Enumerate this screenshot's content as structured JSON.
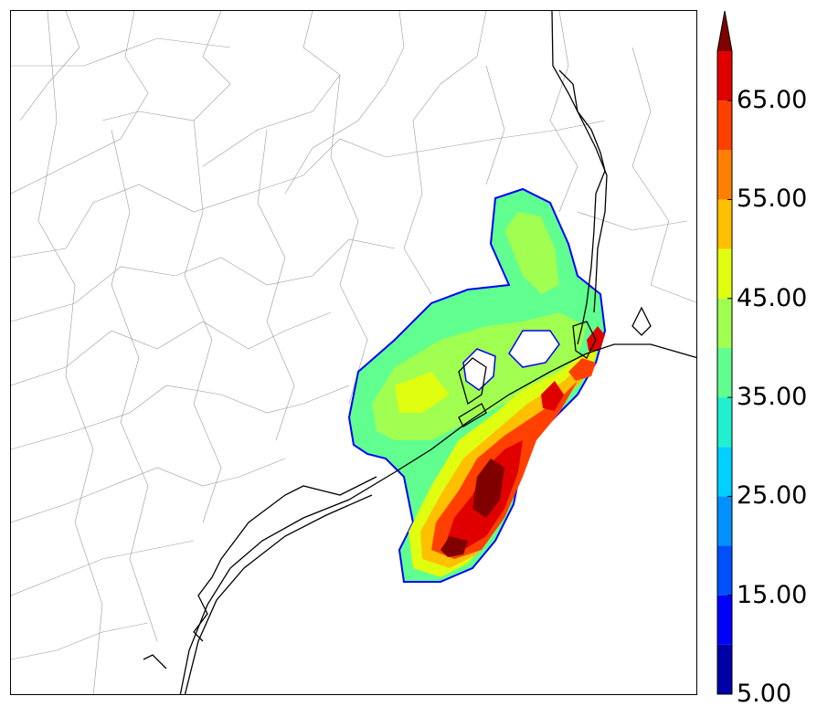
{
  "map": {
    "colorbar": {
      "ticks": [
        "5.00",
        "15.00",
        "25.00",
        "35.00",
        "45.00",
        "55.00",
        "65.00"
      ],
      "tick_values": [
        5,
        15,
        25,
        35,
        45,
        55,
        65
      ],
      "min": 5,
      "max": 70,
      "extend": "max",
      "levels": [
        5,
        10,
        15,
        20,
        25,
        30,
        35,
        40,
        45,
        50,
        55,
        60,
        65,
        70
      ],
      "colors": [
        "#0000a8",
        "#0000ff",
        "#0050ff",
        "#0090ff",
        "#00d0ff",
        "#20f0d0",
        "#60ff90",
        "#a0ff50",
        "#e0ff10",
        "#ffc000",
        "#ff8000",
        "#ff4000",
        "#e00000",
        "#800000"
      ],
      "arrow_color": "#800000"
    }
  }
}
